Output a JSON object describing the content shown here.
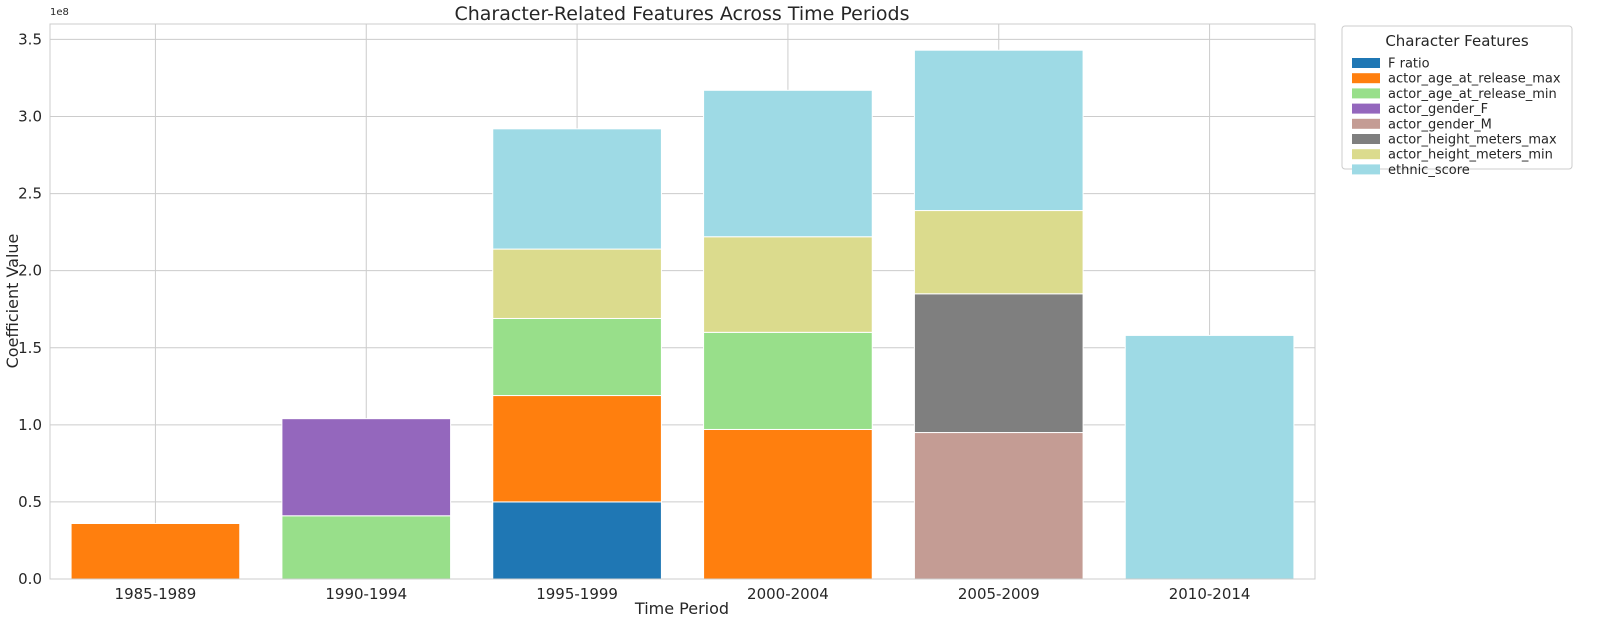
{
  "chart_data": {
    "type": "bar",
    "stacked": true,
    "title": "Character-Related Features Across Time Periods",
    "xlabel": "Time Period",
    "ylabel": "Coefficient Value",
    "y_offset_label": "1e8",
    "ylim": [
      0,
      360000000
    ],
    "yticks": [
      0,
      50000000,
      100000000,
      150000000,
      200000000,
      250000000,
      300000000,
      350000000
    ],
    "ytick_labels": [
      "0.0",
      "0.5",
      "1.0",
      "1.5",
      "2.0",
      "2.5",
      "3.0",
      "3.5"
    ],
    "grid": true,
    "legend_title": "Character Features",
    "legend_placement": "outside-top-right",
    "categories": [
      "1985-1989",
      "1990-1994",
      "1995-1999",
      "2000-2004",
      "2005-2009",
      "2010-2014"
    ],
    "series": [
      {
        "name": "F ratio",
        "color": "#1f77b4",
        "values": [
          0,
          0,
          50000000,
          0,
          0,
          0
        ]
      },
      {
        "name": "actor_age_at_release_max",
        "color": "#ff7f0e",
        "values": [
          36000000,
          0,
          69000000,
          97000000,
          0,
          0
        ]
      },
      {
        "name": "actor_age_at_release_min",
        "color": "#98df8a",
        "values": [
          0,
          41000000,
          50000000,
          63000000,
          0,
          0
        ]
      },
      {
        "name": "actor_gender_F",
        "color": "#9467bd",
        "values": [
          0,
          63000000,
          0,
          0,
          0,
          0
        ]
      },
      {
        "name": "actor_gender_M",
        "color": "#c49c94",
        "values": [
          0,
          0,
          0,
          0,
          95000000,
          0
        ]
      },
      {
        "name": "actor_height_meters_max",
        "color": "#7f7f7f",
        "values": [
          0,
          0,
          0,
          0,
          90000000,
          0
        ]
      },
      {
        "name": "actor_height_meters_min",
        "color": "#dbdb8d",
        "values": [
          0,
          0,
          45000000,
          62000000,
          54000000,
          0
        ]
      },
      {
        "name": "ethnic_score",
        "color": "#9edae5",
        "values": [
          0,
          0,
          78000000,
          95000000,
          104000000,
          158000000
        ]
      }
    ]
  }
}
